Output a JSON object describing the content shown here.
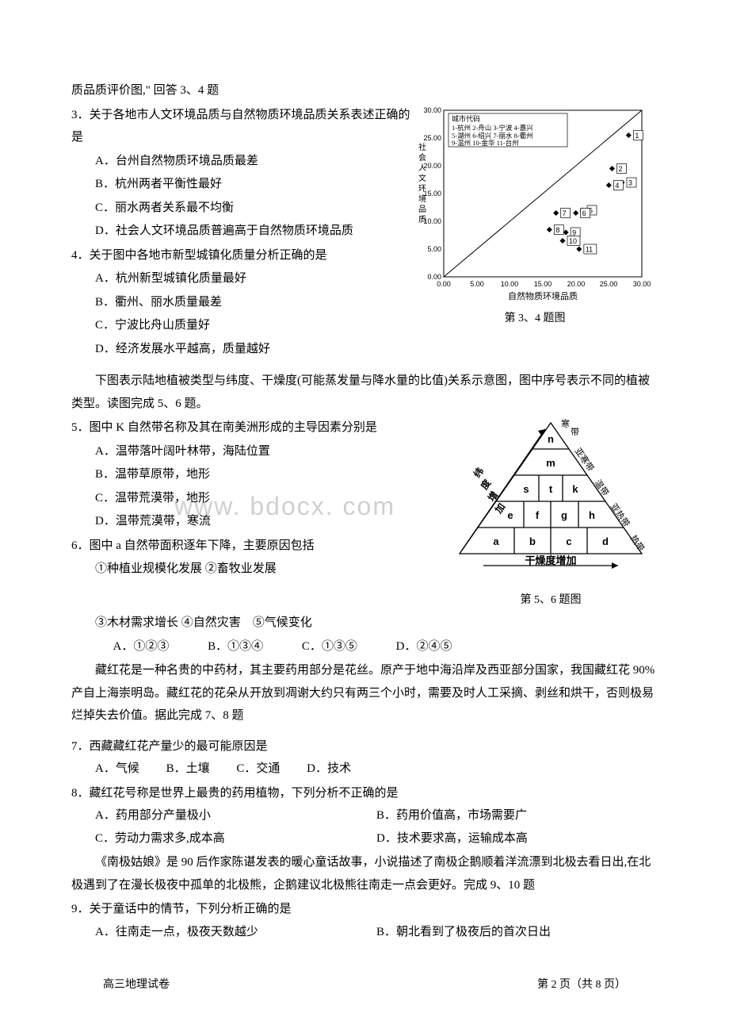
{
  "intro34": "质品质评价图,\" 回答 3、4 题",
  "q3": {
    "stem": "3．关于各地市人文环境品质与自然物质环境品质关系表述正确的是",
    "A": "A．台州自然物质环境品质最差",
    "B": "B．杭州两者平衡性最好",
    "C": "C．丽水两者关系最不均衡",
    "D": "D．社会人文环境品质普遍高于自然物质环境品质"
  },
  "q4": {
    "stem": "4．关于图中各地市新型城镇化质量分析正确的是",
    "A": "A．杭州新型城镇化质量最好",
    "B": "B．衢州、丽水质量最差",
    "C": "C．宁波比舟山质量好",
    "D": "D．经济发展水平越高，质量越好"
  },
  "chart34": {
    "caption": "第 3、4 题图",
    "xlabel": "自然物质环境品质",
    "ylabel": "社 会 人 文 环 境 品 质",
    "legend_title": "城市代码",
    "legend_items": [
      "1-杭州  2-舟山  3-宁波  4-嘉兴",
      "5-湖州  6-绍兴  7-丽水  8-衢州",
      "9-温州  10-金华  11-台州"
    ],
    "xlim": [
      0,
      30
    ],
    "ylim": [
      0,
      30
    ],
    "xticks": [
      "0.00",
      "5.00",
      "10.00",
      "15.00",
      "20.00",
      "25.00",
      "30.00"
    ],
    "yticks": [
      "0.00",
      "5.00",
      "10.00",
      "15.00",
      "20.00",
      "25.00",
      "30.00"
    ],
    "points": [
      {
        "id": "1",
        "x": 28,
        "y": 25.5
      },
      {
        "id": "2",
        "x": 25.5,
        "y": 19.5
      },
      {
        "id": "3",
        "x": 27,
        "y": 17
      },
      {
        "id": "4",
        "x": 25,
        "y": 16.5
      },
      {
        "id": "5",
        "x": 21,
        "y": 12
      },
      {
        "id": "6",
        "x": 20,
        "y": 11.5
      },
      {
        "id": "7",
        "x": 17,
        "y": 11.5
      },
      {
        "id": "8",
        "x": 16,
        "y": 8.5
      },
      {
        "id": "9",
        "x": 18.5,
        "y": 8
      },
      {
        "id": "10",
        "x": 18,
        "y": 6.5
      },
      {
        "id": "11",
        "x": 20.5,
        "y": 5
      }
    ],
    "colors": {
      "axis": "#000",
      "point": "#000",
      "grid": "#000",
      "bg": "#fff"
    }
  },
  "intro56": "下图表示陆地植被类型与纬度、干燥度(可能蒸发量与降水量的比值)关系示意图，图中序号表示不同的植被类型。读图完成 5、6 题。",
  "q5": {
    "stem": "5．图中 K 自然带名称及其在南美洲形成的主导因素分别是",
    "A": "A．温带落叶阔叶林带，海陆位置",
    "B": "B．温带草原带，地形",
    "C": "C．温带荒漠带，地形",
    "D": "D．温带荒漠带，寒流"
  },
  "q6": {
    "stem": "6．图中 a 自然带面积逐年下降，主要原因包括",
    "line1": "①种植业规模化发展 ②畜牧业发展",
    "line2": "③木材需求增长 ④自然灾害　⑤气候变化",
    "A": "A．①②③",
    "B": "B．①③④",
    "C": "C．①③⑤",
    "D": "D．②④⑤"
  },
  "pyramid": {
    "caption": "第 5、6 题图",
    "top_label": "寒 带",
    "right_labels": [
      "亚寒带",
      "温带",
      "亚热带",
      "热带"
    ],
    "left_label_top": "纬度增加",
    "bottom_label": "干燥度增加",
    "cells": {
      "r1": [
        "n"
      ],
      "r2": [
        "m"
      ],
      "r3": [
        "s",
        "t",
        "k"
      ],
      "r4": [
        "e",
        "f",
        "g",
        "h"
      ],
      "r5": [
        "a",
        "b",
        "c",
        "d"
      ]
    }
  },
  "watermark": "www. bdocx. com",
  "intro78": "藏红花是一种名贵的中药材，其主要药用部分是花丝。原产于地中海沿岸及西亚部分国家，我国藏红花 90%产自上海崇明岛。藏红花的花朵从开放到凋谢大约只有两三个小时，需要及时人工采摘、剥丝和烘干，否则极易烂掉失去价值。据此完成 7、8 题",
  "q7": {
    "stem": "7．西藏藏红花产量少的最可能原因是",
    "A": "A．气候",
    "B": "B．土壤",
    "C": "C．交通",
    "D": "D．技术"
  },
  "q8": {
    "stem": "8．藏红花号称是世界上最贵的药用植物，下列分析不正确的是",
    "A": "A．药用部分产量极小",
    "B": "B．药用价值高，市场需要广",
    "C": "C．劳动力需求多,成本高",
    "D": "D．技术要求高，运输成本高"
  },
  "intro910": "《南极姑娘》是 90 后作家陈谌发表的暖心童话故事，小说描述了南极企鹅顺着洋流漂到北极去看日出,在北极遇到了在漫长极夜中孤单的北极熊，企鹅建议北极熊往南走一点会更好。完成 9、10 题",
  "q9": {
    "stem": "9．关于童话中的情节，下列分析正确的是",
    "A": "A．往南走一点，极夜天数越少",
    "B": "B．朝北看到了极夜后的首次日出"
  },
  "footer": {
    "left": "高三地理试卷",
    "right": "第 2 页（共 8 页）"
  }
}
